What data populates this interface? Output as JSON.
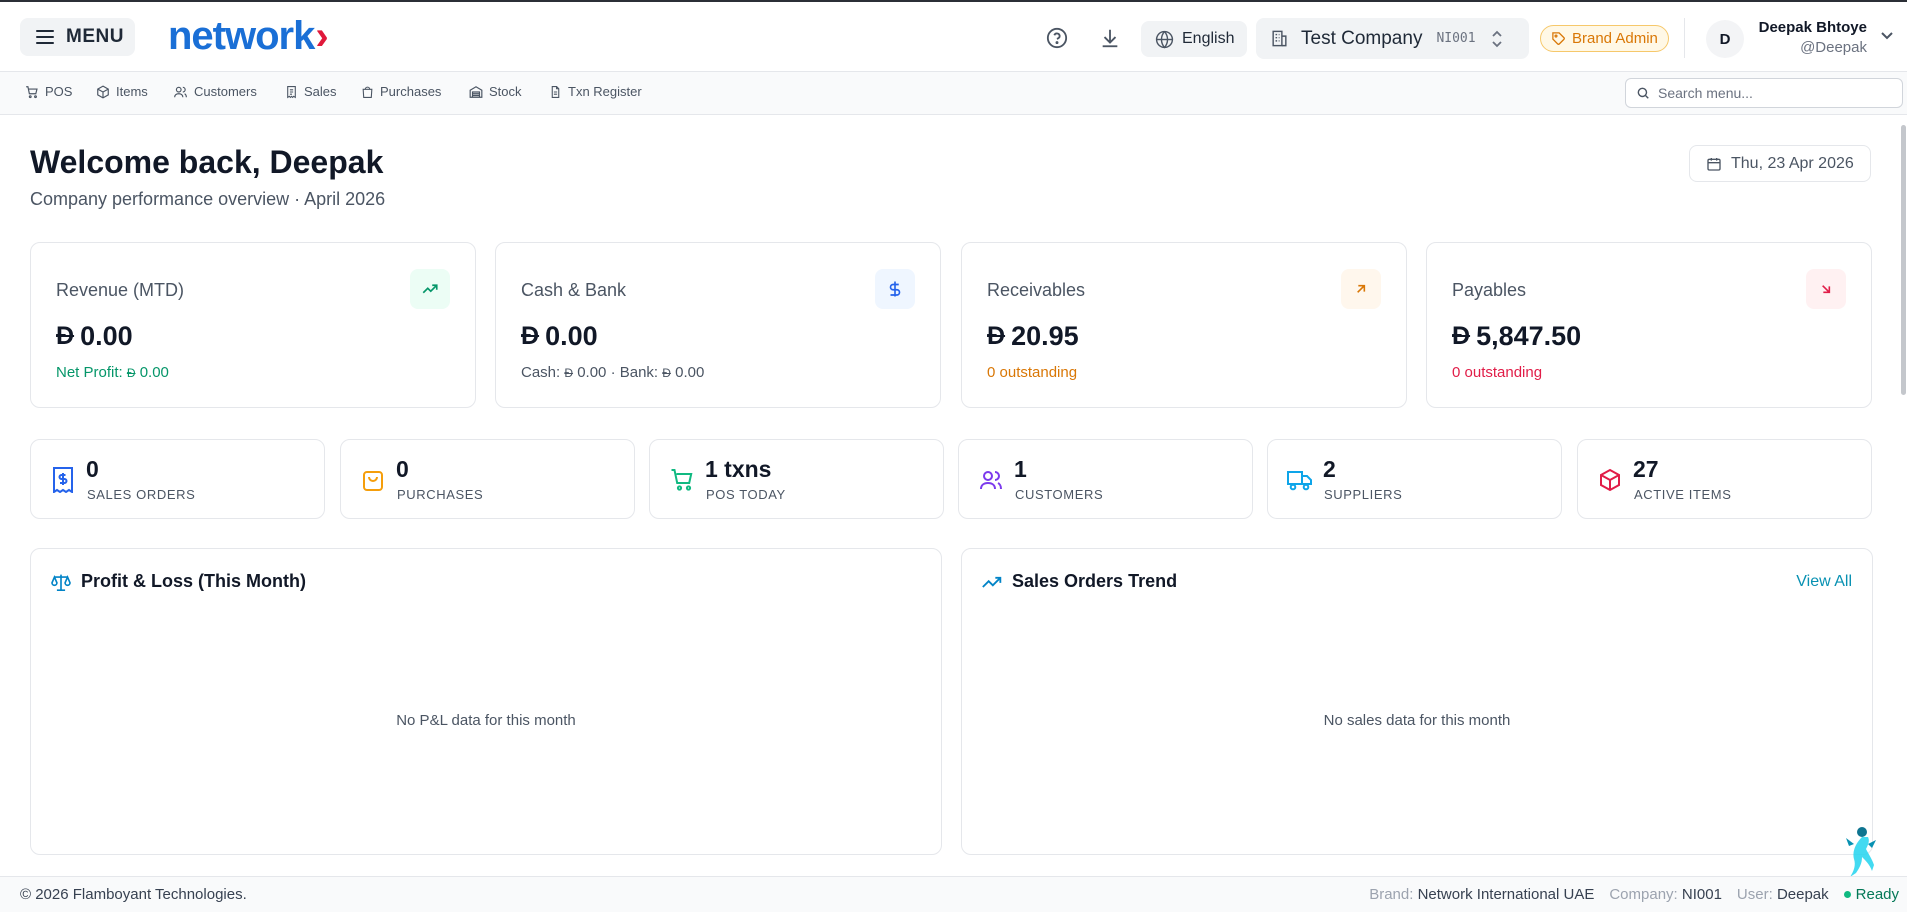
{
  "header": {
    "menu_label": "MENU",
    "logo_text": "network",
    "logo_chevron": "›",
    "language": "English",
    "company_name": "Test Company",
    "company_code": "NI001",
    "role_badge": "Brand Admin",
    "avatar_initial": "D",
    "user_name": "Deepak Bhtoye",
    "user_handle": "@Deepak",
    "icons": [
      "help-circle-icon",
      "download-icon",
      "globe-icon",
      "building-icon",
      "chevrons-up-down-icon",
      "tag-icon",
      "chevron-down-icon"
    ]
  },
  "nav": {
    "items": [
      {
        "label": "POS",
        "icon": "cart-icon"
      },
      {
        "label": "Items",
        "icon": "box-icon"
      },
      {
        "label": "Customers",
        "icon": "users-icon"
      },
      {
        "label": "Sales",
        "icon": "receipt-icon"
      },
      {
        "label": "Purchases",
        "icon": "bag-icon"
      },
      {
        "label": "Stock",
        "icon": "warehouse-icon"
      },
      {
        "label": "Txn Register",
        "icon": "file-icon"
      }
    ],
    "search_placeholder": "Search menu..."
  },
  "welcome": {
    "title": "Welcome back, Deepak",
    "subtitle": "Company performance overview · April 2026",
    "date": "Thu, 23 Apr 2026"
  },
  "currency_symbol": "Đ",
  "kpis": [
    {
      "label": "Revenue (MTD)",
      "value": "0.00",
      "sub_prefix": "Net Profit: ",
      "sub_value": "0.00",
      "icon": "trending-up-icon",
      "color": "#059669",
      "bg": "#ecfdf5"
    },
    {
      "label": "Cash & Bank",
      "value": "0.00",
      "sub_cash_label": "Cash: ",
      "sub_cash": "0.00",
      "sub_bank_label": " · Bank: ",
      "sub_bank": "0.00",
      "icon": "dollar-icon",
      "color": "#2563eb",
      "bg": "#eff6ff"
    },
    {
      "label": "Receivables",
      "value": "20.95",
      "sub": "0 outstanding",
      "icon": "arrow-up-right-icon",
      "color": "#d97706",
      "bg": "#fff7ed"
    },
    {
      "label": "Payables",
      "value": "5,847.50",
      "sub": "0 outstanding",
      "icon": "arrow-down-right-icon",
      "color": "#e11d48",
      "bg": "#fff1f2"
    }
  ],
  "stats": [
    {
      "value": "0",
      "label": "SALES ORDERS",
      "icon": "receipt-dollar-icon",
      "color": "#2563eb"
    },
    {
      "value": "0",
      "label": "PURCHASES",
      "icon": "shopping-bag-icon",
      "color": "#f59e0b"
    },
    {
      "value": "1 txns",
      "label": "POS TODAY",
      "icon": "shopping-cart-icon",
      "color": "#10b981"
    },
    {
      "value": "1",
      "label": "CUSTOMERS",
      "icon": "users-icon",
      "color": "#7c3aed"
    },
    {
      "value": "2",
      "label": "SUPPLIERS",
      "icon": "truck-icon",
      "color": "#0ea5e9"
    },
    {
      "value": "27",
      "label": "ACTIVE ITEMS",
      "icon": "package-icon",
      "color": "#e11d48"
    }
  ],
  "panels": {
    "pl_title": "Profit & Loss (This Month)",
    "pl_empty": "No P&L data for this month",
    "sales_title": "Sales Orders Trend",
    "sales_view_all": "View All",
    "sales_empty": "No sales data for this month"
  },
  "footer": {
    "copyright": "© 2026 Flamboyant Technologies.",
    "brand_label": "Brand: ",
    "brand": "Network International UAE",
    "company_label": "Company: ",
    "company": "NI001",
    "user_label": "User: ",
    "user": "Deepak",
    "status": "Ready"
  }
}
